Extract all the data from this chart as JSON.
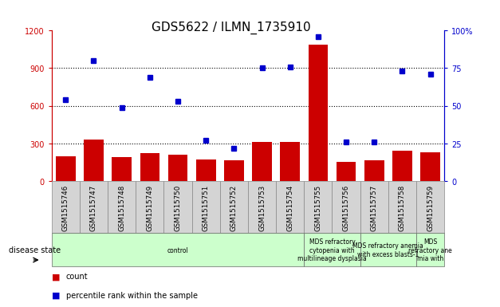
{
  "title": "GDS5622 / ILMN_1735910",
  "samples": [
    "GSM1515746",
    "GSM1515747",
    "GSM1515748",
    "GSM1515749",
    "GSM1515750",
    "GSM1515751",
    "GSM1515752",
    "GSM1515753",
    "GSM1515754",
    "GSM1515755",
    "GSM1515756",
    "GSM1515757",
    "GSM1515758",
    "GSM1515759"
  ],
  "counts": [
    200,
    330,
    190,
    225,
    210,
    175,
    165,
    310,
    315,
    1090,
    155,
    165,
    240,
    230
  ],
  "percentiles": [
    54,
    80,
    49,
    69,
    53,
    27,
    22,
    75,
    76,
    96,
    26,
    26,
    73,
    71
  ],
  "group_defs": [
    {
      "start": 0,
      "end": 9,
      "label": "control"
    },
    {
      "start": 9,
      "end": 11,
      "label": "MDS refractory\ncytopenia with\nmultilineage dysplasia"
    },
    {
      "start": 11,
      "end": 13,
      "label": "MDS refractory anemia\nwith excess blasts-1"
    },
    {
      "start": 13,
      "end": 14,
      "label": "MDS\nrefractory ane\nmia with"
    }
  ],
  "bar_color": "#cc0000",
  "dot_color": "#0000cc",
  "left_ylim": [
    0,
    1200
  ],
  "right_ylim": [
    0,
    100
  ],
  "left_yticks": [
    0,
    300,
    600,
    900,
    1200
  ],
  "right_yticks": [
    0,
    25,
    50,
    75,
    100
  ],
  "left_yticklabels": [
    "0",
    "300",
    "600",
    "900",
    "1200"
  ],
  "right_yticklabels": [
    "0",
    "25",
    "50",
    "75",
    "100%"
  ],
  "grid_values": [
    300,
    600,
    900
  ],
  "title_fontsize": 11,
  "tick_fontsize": 7,
  "sample_box_color": "#d4d4d4",
  "group_box_color": "#ccffcc",
  "disease_state_label": "disease state"
}
